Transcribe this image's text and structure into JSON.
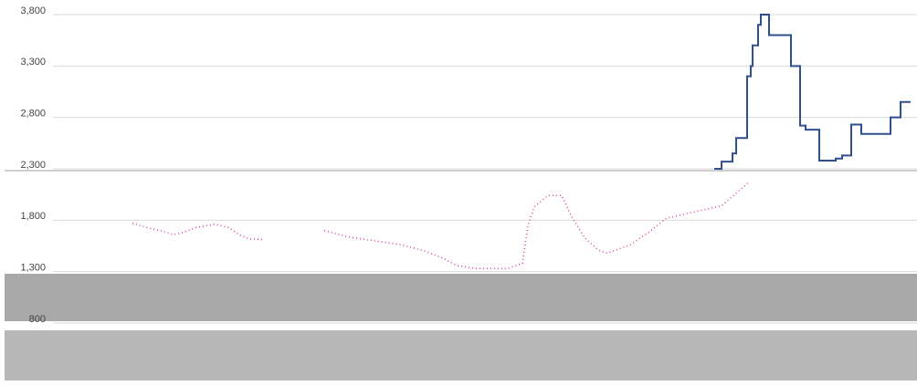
{
  "chart_data": {
    "type": "line",
    "xlim": [
      0,
      1004
    ],
    "ylim": [
      800,
      3800
    ],
    "yticks": [
      {
        "value": 3800,
        "label": "3,800"
      },
      {
        "value": 3300,
        "label": "3,300"
      },
      {
        "value": 2800,
        "label": "2,800"
      },
      {
        "value": 2300,
        "label": "2,300"
      },
      {
        "value": 1800,
        "label": "1,800"
      },
      {
        "value": 1300,
        "label": "1,300"
      },
      {
        "value": 800,
        "label": "800"
      }
    ],
    "grid": true,
    "series": [
      {
        "color": "#d63fa8",
        "dashed": true,
        "step": false,
        "x": [
          145,
          160,
          175,
          190,
          200,
          215,
          235,
          250,
          262,
          272,
          290,
          null,
          355,
          380,
          410,
          440,
          465,
          485,
          500,
          520,
          555,
          572,
          578,
          585,
          600,
          615,
          625,
          640,
          655,
          665,
          690,
          710,
          730,
          760,
          790,
          820
        ],
        "values": [
          1770,
          1730,
          1700,
          1660,
          1680,
          1730,
          1760,
          1730,
          1660,
          1620,
          1610,
          null,
          1700,
          1640,
          1600,
          1560,
          1500,
          1430,
          1360,
          1330,
          1330,
          1380,
          1750,
          1930,
          2040,
          2040,
          1850,
          1630,
          1510,
          1480,
          1560,
          1680,
          1820,
          1880,
          1940,
          2170
        ]
      },
      {
        "color": "#2f4f8f",
        "dashed": false,
        "step": true,
        "x": [
          782,
          790,
          802,
          806,
          818,
          822,
          824,
          830,
          833,
          842,
          866,
          876,
          882,
          897,
          915,
          922,
          932,
          943,
          975,
          986,
          997
        ],
        "values": [
          2300,
          2370,
          2450,
          2600,
          3200,
          3300,
          3500,
          3700,
          3800,
          3600,
          3300,
          2720,
          2680,
          2380,
          2400,
          2430,
          2730,
          2640,
          2800,
          2950,
          2950
        ]
      }
    ]
  }
}
